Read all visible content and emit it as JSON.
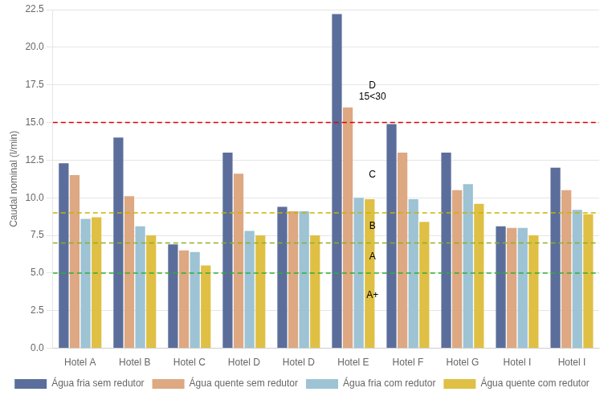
{
  "chart_data": {
    "type": "bar",
    "ylabel": "Caudal nominal (l/min)",
    "categories": [
      "Hotel A",
      "Hotel B",
      "Hotel C",
      "Hotel D",
      "Hotel D",
      "Hotel E",
      "Hotel F",
      "Hotel G",
      "Hotel I",
      "Hotel I"
    ],
    "series": [
      {
        "name": "Água fria sem redutor",
        "color": "#5b6e9b",
        "values": [
          12.3,
          14.0,
          6.9,
          13.0,
          9.4,
          22.2,
          14.9,
          13.0,
          8.1,
          12.0
        ]
      },
      {
        "name": "Água quente sem redutor",
        "color": "#dda882",
        "values": [
          11.5,
          10.1,
          6.5,
          11.6,
          9.1,
          16.0,
          13.0,
          10.5,
          8.0,
          10.5
        ]
      },
      {
        "name": "Água fria com redutor",
        "color": "#9dc3d4",
        "values": [
          8.6,
          8.1,
          6.4,
          7.8,
          9.1,
          10.0,
          9.9,
          10.9,
          8.0,
          9.2
        ]
      },
      {
        "name": "Água quente com redutor",
        "color": "#dfc044",
        "values": [
          8.7,
          7.5,
          5.5,
          7.5,
          7.5,
          9.9,
          8.4,
          9.6,
          7.5,
          8.9
        ]
      }
    ],
    "reference_lines": [
      {
        "value": 15.0,
        "color": "#e00000",
        "line_style": "dashed"
      },
      {
        "value": 9.0,
        "color": "#c8b400",
        "line_style": "dashed"
      },
      {
        "value": 7.0,
        "color": "#8db020",
        "line_style": "dashed"
      },
      {
        "value": 5.0,
        "color": "#30b030",
        "line_style": "dashed"
      }
    ],
    "annotations": [
      {
        "text": "D",
        "x": 5.35,
        "y": 17.1,
        "align": "bottom"
      },
      {
        "text": "15<30",
        "x": 5.35,
        "y": 17.0,
        "align": "top"
      },
      {
        "text": "C",
        "x": 5.35,
        "y": 11.5,
        "align": "middle"
      },
      {
        "text": "B",
        "x": 5.35,
        "y": 8.1,
        "align": "middle"
      },
      {
        "text": "A",
        "x": 5.35,
        "y": 6.1,
        "align": "middle"
      },
      {
        "text": "A+",
        "x": 5.35,
        "y": 3.5,
        "align": "middle"
      }
    ],
    "ylim": [
      0,
      22.5
    ],
    "yticks": [
      {
        "value": 0,
        "label": "0.0"
      },
      2.5,
      {
        "value": 5,
        "label": "5.0"
      },
      7.5,
      {
        "value": 10,
        "label": "10.0"
      },
      12.5,
      {
        "value": 15,
        "label": "15.0"
      },
      17.5,
      {
        "value": 20,
        "label": "20.0"
      },
      22.5
    ],
    "grid": true,
    "legend": "bottom"
  }
}
